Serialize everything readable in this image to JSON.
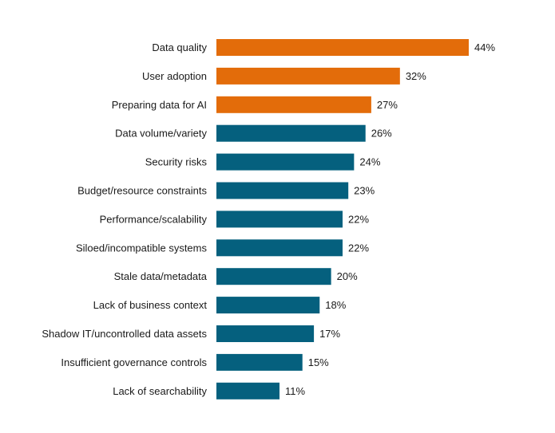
{
  "chart_data": {
    "type": "bar",
    "orientation": "horizontal",
    "categories": [
      "Data quality",
      "User adoption",
      "Preparing data for AI",
      "Data volume/variety",
      "Security risks",
      "Budget/resource constraints",
      "Performance/scalability",
      "Siloed/incompatible systems",
      "Stale data/metadata",
      "Lack of business context",
      "Shadow IT/uncontrolled data assets",
      "Insufficient governance controls",
      "Lack of searchability"
    ],
    "values": [
      44,
      32,
      27,
      26,
      24,
      23,
      22,
      22,
      20,
      18,
      17,
      15,
      11
    ],
    "value_labels": [
      "44%",
      "32%",
      "27%",
      "26%",
      "24%",
      "23%",
      "22%",
      "22%",
      "20%",
      "18%",
      "17%",
      "15%",
      "11%"
    ],
    "highlighted": [
      true,
      true,
      true,
      false,
      false,
      false,
      false,
      false,
      false,
      false,
      false,
      false,
      false
    ],
    "xlim": [
      0,
      50
    ],
    "grid": false,
    "legend": "none",
    "colors": {
      "highlight": "#E36C0A",
      "default": "#05607E"
    }
  }
}
